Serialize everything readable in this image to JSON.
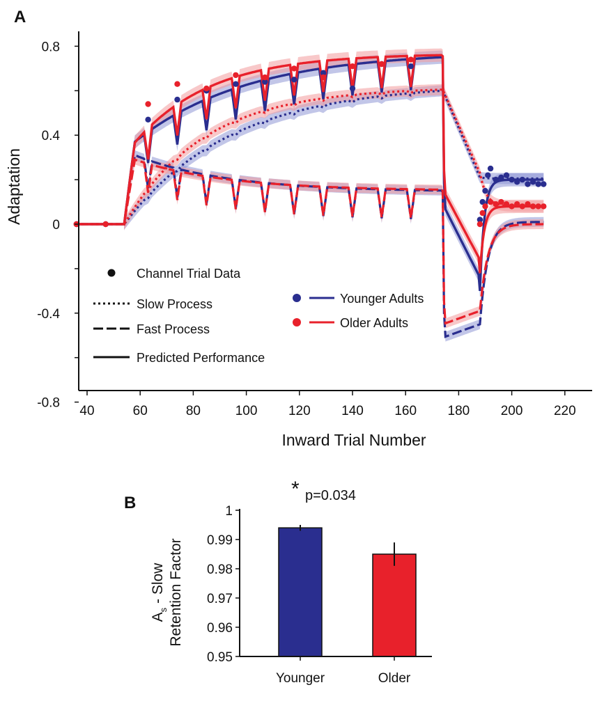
{
  "colors": {
    "younger": "#2a2e8f",
    "older": "#e8212b",
    "younger_band": "#8f98d6",
    "older_band": "#f29a9c",
    "axis": "#111111"
  },
  "panel_a_letter": "A",
  "panel_b_letter": "B",
  "legend_a": {
    "channel": "Channel Trial Data",
    "slow": "Slow Process",
    "fast": "Fast Process",
    "predicted": "Predicted Performance",
    "younger": "Younger Adults",
    "older": "Older Adults"
  },
  "significance": {
    "star": "*",
    "pvalue": "p=0.034"
  },
  "ylabel_b_sub": "s",
  "chart_data": [
    {
      "type": "line",
      "xlabel": "Inward Trial Number",
      "ylabel": "Adaptation",
      "xlim": [
        35,
        220
      ],
      "ylim": [
        -0.8,
        0.9
      ],
      "xticks": [
        40,
        60,
        80,
        100,
        120,
        140,
        160,
        180,
        200,
        220
      ],
      "yticks": [
        {
          "value": 0.8,
          "label": "0.8"
        },
        {
          "value": 0.4,
          "label": "0.4"
        },
        {
          "value": 0,
          "label": "0"
        },
        {
          "value": -0.4,
          "label": "-0.4"
        },
        {
          "value": -0.8,
          "label": "-0.8"
        }
      ],
      "phases": {
        "adaptation_start": 54,
        "deadaptation_start": 174,
        "error_clamp_start": 188,
        "end": 212
      },
      "channel_trials": [
        63,
        74,
        85,
        96,
        107,
        118,
        129,
        140,
        151,
        162
      ],
      "series": [
        {
          "name": "Younger Adults",
          "process_params": {
            "slow_end_adapt": 0.6,
            "slow_tau": 40,
            "fast_peak": 0.31,
            "fast_end_adapt": 0.145,
            "fast_tau": 35,
            "dip": 0.13,
            "deadapt_fast_min": -0.51,
            "deadapt_total_min": -0.3,
            "clamp_slow": 0.205,
            "clamp_fast": 0.01,
            "clamp_total": 0.2
          },
          "channel_points": [
            {
              "x": 36,
              "y": 0.0
            },
            {
              "x": 47,
              "y": 0.0
            },
            {
              "x": 63,
              "y": 0.47
            },
            {
              "x": 74,
              "y": 0.56
            },
            {
              "x": 85,
              "y": 0.6
            },
            {
              "x": 96,
              "y": 0.63
            },
            {
              "x": 107,
              "y": 0.64
            },
            {
              "x": 118,
              "y": 0.65
            },
            {
              "x": 129,
              "y": 0.68
            },
            {
              "x": 140,
              "y": 0.61
            },
            {
              "x": 151,
              "y": 0.72
            },
            {
              "x": 162,
              "y": 0.71
            },
            {
              "x": 188,
              "y": 0.02
            },
            {
              "x": 189,
              "y": 0.1
            },
            {
              "x": 190,
              "y": 0.15
            },
            {
              "x": 191,
              "y": 0.22
            },
            {
              "x": 192,
              "y": 0.25
            },
            {
              "x": 194,
              "y": 0.2
            },
            {
              "x": 196,
              "y": 0.21
            },
            {
              "x": 198,
              "y": 0.22
            },
            {
              "x": 200,
              "y": 0.2
            },
            {
              "x": 202,
              "y": 0.19
            },
            {
              "x": 204,
              "y": 0.2
            },
            {
              "x": 206,
              "y": 0.18
            },
            {
              "x": 208,
              "y": 0.19
            },
            {
              "x": 210,
              "y": 0.18
            },
            {
              "x": 212,
              "y": 0.18
            }
          ]
        },
        {
          "name": "Older Adults",
          "process_params": {
            "slow_end_adapt": 0.605,
            "slow_tau": 30,
            "fast_peak": 0.29,
            "fast_end_adapt": 0.15,
            "fast_tau": 35,
            "dip": 0.13,
            "deadapt_fast_min": -0.45,
            "deadapt_total_min": -0.22,
            "clamp_slow": 0.08,
            "clamp_fast": 0.0,
            "clamp_total": 0.08
          },
          "channel_points": [
            {
              "x": 36,
              "y": 0.0
            },
            {
              "x": 47,
              "y": 0.0
            },
            {
              "x": 63,
              "y": 0.54
            },
            {
              "x": 74,
              "y": 0.63
            },
            {
              "x": 85,
              "y": 0.61
            },
            {
              "x": 96,
              "y": 0.67
            },
            {
              "x": 107,
              "y": 0.66
            },
            {
              "x": 118,
              "y": 0.7
            },
            {
              "x": 129,
              "y": 0.66
            },
            {
              "x": 140,
              "y": 0.71
            },
            {
              "x": 151,
              "y": 0.72
            },
            {
              "x": 162,
              "y": 0.74
            },
            {
              "x": 188,
              "y": 0.0
            },
            {
              "x": 189,
              "y": 0.05
            },
            {
              "x": 190,
              "y": 0.08
            },
            {
              "x": 192,
              "y": 0.1
            },
            {
              "x": 194,
              "y": 0.09
            },
            {
              "x": 196,
              "y": 0.1
            },
            {
              "x": 198,
              "y": 0.09
            },
            {
              "x": 200,
              "y": 0.08
            },
            {
              "x": 202,
              "y": 0.09
            },
            {
              "x": 204,
              "y": 0.08
            },
            {
              "x": 206,
              "y": 0.09
            },
            {
              "x": 208,
              "y": 0.08
            },
            {
              "x": 210,
              "y": 0.08
            },
            {
              "x": 212,
              "y": 0.08
            }
          ]
        }
      ]
    },
    {
      "type": "bar",
      "ylabel": "A - Slow Retention Factor",
      "ylabel_lines": [
        "A - Slow",
        "Retention Factor"
      ],
      "categories": [
        "Younger",
        "Older"
      ],
      "values": [
        0.994,
        0.985
      ],
      "errors": [
        0.001,
        0.004
      ],
      "ylim": [
        0.95,
        1.0
      ],
      "yticks": [
        {
          "value": 1.0,
          "label": "1"
        },
        {
          "value": 0.99,
          "label": "0.99"
        },
        {
          "value": 0.98,
          "label": "0.98"
        },
        {
          "value": 0.97,
          "label": "0.97"
        },
        {
          "value": 0.96,
          "label": "0.96"
        },
        {
          "value": 0.95,
          "label": "0.95"
        }
      ]
    }
  ]
}
